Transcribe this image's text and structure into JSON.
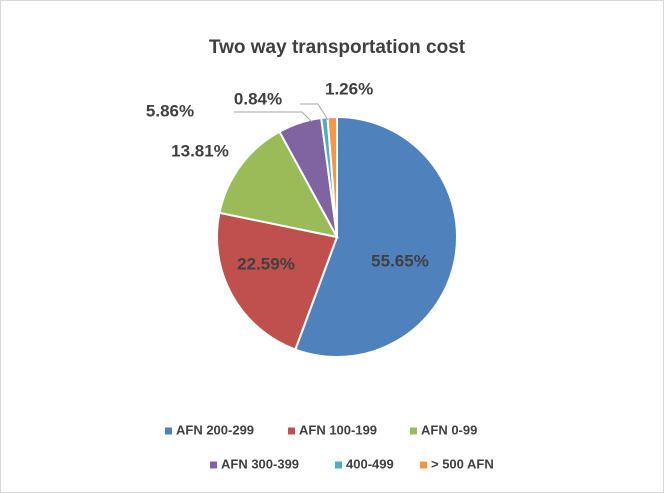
{
  "chart_data": {
    "type": "pie",
    "title": "Two way transportation cost",
    "categories": [
      "AFN 200-299",
      "AFN 100-199",
      "AFN 0-99",
      "AFN 300-399",
      "400-499",
      "> 500 AFN"
    ],
    "values": [
      55.65,
      22.59,
      13.81,
      5.86,
      0.84,
      1.26
    ],
    "value_labels": [
      "55.65%",
      "22.59%",
      "13.81%",
      "5.86%",
      "0.84%",
      "1.26%"
    ],
    "colors": [
      "#4f81bd",
      "#c0504d",
      "#9bbb59",
      "#8064a2",
      "#4bacc6",
      "#f79646"
    ],
    "legend": "bottom"
  }
}
